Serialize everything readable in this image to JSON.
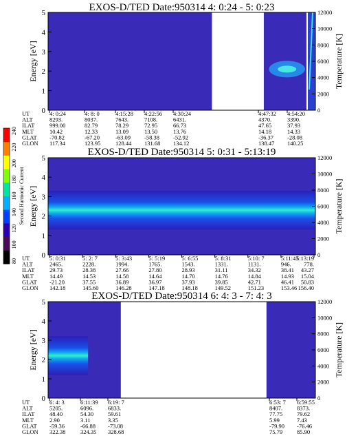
{
  "chart_data": [
    {
      "type": "heatmap",
      "title": "EXOS-D/TED   Date:950314  4: 0:24 - 5: 0:23",
      "ylabel": "Energy [eV]",
      "y2label": "Temperature [K]",
      "ylim": [
        0,
        5
      ],
      "y2lim": [
        0,
        12000
      ],
      "yticks": [
        "0",
        "1",
        "2",
        "3",
        "4",
        "5"
      ],
      "y2ticks": [
        "0",
        "2000",
        "4000",
        "6000",
        "8000",
        "10000",
        "12000"
      ],
      "data_segments": [
        [
          0.0,
          0.613
        ],
        [
          0.807,
          1.0
        ]
      ],
      "energy_band": {
        "present": false
      },
      "info_labels": [
        "UT",
        "ALT",
        "ILAT",
        "MLT",
        "GLAT",
        "GLON"
      ],
      "columns": [
        {
          "values": [
            "4: 0:24",
            "8293.",
            "999.00",
            "10.42",
            "-70.82",
            "117.34"
          ]
        },
        {
          "values": [
            "4: 8: 0",
            "8037.",
            "82.79",
            "12.33",
            "-67.20",
            "123.95"
          ]
        },
        {
          "values": [
            "4:15:28",
            "7643.",
            "78.29",
            "13.09",
            "-63.09",
            "128.44"
          ]
        },
        {
          "values": [
            "4:22:56",
            "7108.",
            "72.95",
            "13.50",
            "-58.38",
            "131.68"
          ]
        },
        {
          "values": [
            "4:30:24",
            "6431.",
            "66.73",
            "13.76",
            "-52.92",
            "134.12"
          ]
        },
        {
          "values": [
            "4:47:32",
            "4370.",
            "47.65",
            "14.18",
            "-36.37",
            "138.47"
          ]
        },
        {
          "values": [
            "4:54:20",
            "3390.",
            "37.93",
            "14.33",
            "-28.08",
            "140.25"
          ]
        }
      ]
    },
    {
      "type": "heatmap",
      "title": "EXOS-D/TED   Date:950314  5: 0:31 - 5:13:19",
      "ylabel": "Energy [eV]",
      "y2label": "Temperature [K]",
      "ylim": [
        0,
        5
      ],
      "y2lim": [
        0,
        12000
      ],
      "yticks": [
        "0",
        "1",
        "2",
        "3",
        "4",
        "5"
      ],
      "y2ticks": [
        "0",
        "2000",
        "4000",
        "6000",
        "8000",
        "10000",
        "12000"
      ],
      "data_segments": [
        [
          0.0,
          1.0
        ]
      ],
      "energy_band": {
        "present": true,
        "center_eV": 2.3
      },
      "info_labels": [
        "UT",
        "ALT",
        "ILAT",
        "MLT",
        "GLAT",
        "GLON"
      ],
      "columns": [
        {
          "values": [
            "5: 0:31",
            "2465.",
            "29.73",
            "14.49",
            "-21.20",
            "142.18"
          ]
        },
        {
          "values": [
            "5: 2: 7",
            "2228.",
            "28.38",
            "14.53",
            "37.55",
            "145.60"
          ]
        },
        {
          "values": [
            "5: 3:43",
            "1994.",
            "27.66",
            "14.58",
            "36.89",
            "146.28"
          ]
        },
        {
          "values": [
            "5: 5:19",
            "1765.",
            "27.80",
            "14.64",
            "36.97",
            "147.18"
          ]
        },
        {
          "values": [
            "5: 6:55",
            "1543.",
            "28.93",
            "14.70",
            "37.93",
            "148.18"
          ]
        },
        {
          "values": [
            "5: 8:31",
            "1331.",
            "31.11",
            "14.76",
            "39.85",
            "149.52"
          ]
        },
        {
          "values": [
            "5:10: 7",
            "1131.",
            "34.32",
            "14.84",
            "42.71",
            "151.23"
          ]
        },
        {
          "values": [
            "5:11:43",
            "946.",
            "38.41",
            "14.93",
            "46.41",
            "153.46"
          ]
        },
        {
          "values": [
            "5:13:19",
            "778.",
            "43.27",
            "15.04",
            "50.83",
            "156.40"
          ]
        }
      ]
    },
    {
      "type": "heatmap",
      "title": "EXOS-D/TED   Date:950314  6: 4: 3 - 7: 4: 3",
      "ylabel": "Energy [eV]",
      "y2label": "Temperature [K]",
      "ylim": [
        0,
        5
      ],
      "y2lim": [
        0,
        12000
      ],
      "yticks": [
        "0",
        "1",
        "2",
        "3",
        "4",
        "5"
      ],
      "y2ticks": [
        "0",
        "2000",
        "4000",
        "6000",
        "8000",
        "10000",
        "12000"
      ],
      "data_segments": [
        [
          0.0,
          0.272
        ],
        [
          0.817,
          1.0
        ]
      ],
      "energy_band": {
        "present": true,
        "center_eV": 2.2
      },
      "info_labels": [
        "UT",
        "ALT",
        "ILAT",
        "MLT",
        "GLAT",
        "GLON"
      ],
      "columns": [
        {
          "values": [
            "6: 4: 3",
            "5205.",
            "48.40",
            "2.90",
            "-59.36",
            "322.38"
          ]
        },
        {
          "values": [
            "6:11:39",
            "6096.",
            "54.30",
            "3.11",
            "-66.88",
            "324.35"
          ]
        },
        {
          "values": [
            "6:19: 7",
            "6833.",
            "59.61",
            "3.35",
            "-73.08",
            "328.68"
          ]
        },
        {
          "values": [
            "6:53: 7",
            "8407.",
            "77.75",
            "5.99",
            "-79.90",
            "75.79"
          ]
        },
        {
          "values": [
            "6:59:55",
            "8373.",
            "79.62",
            "7.43",
            "-76.46",
            "85.90"
          ]
        }
      ]
    }
  ],
  "colorbar": {
    "label": "Second Harmonic Current",
    "ticks": [
      "80",
      "100",
      "120",
      "140",
      "160",
      "180",
      "200",
      "220",
      "240"
    ],
    "colors": [
      "#000000",
      "#4a0a58",
      "#2a00b0",
      "#0040ff",
      "#00b0ff",
      "#00e6a0",
      "#80ff00",
      "#ffff00",
      "#ff8000",
      "#ff0000"
    ]
  }
}
